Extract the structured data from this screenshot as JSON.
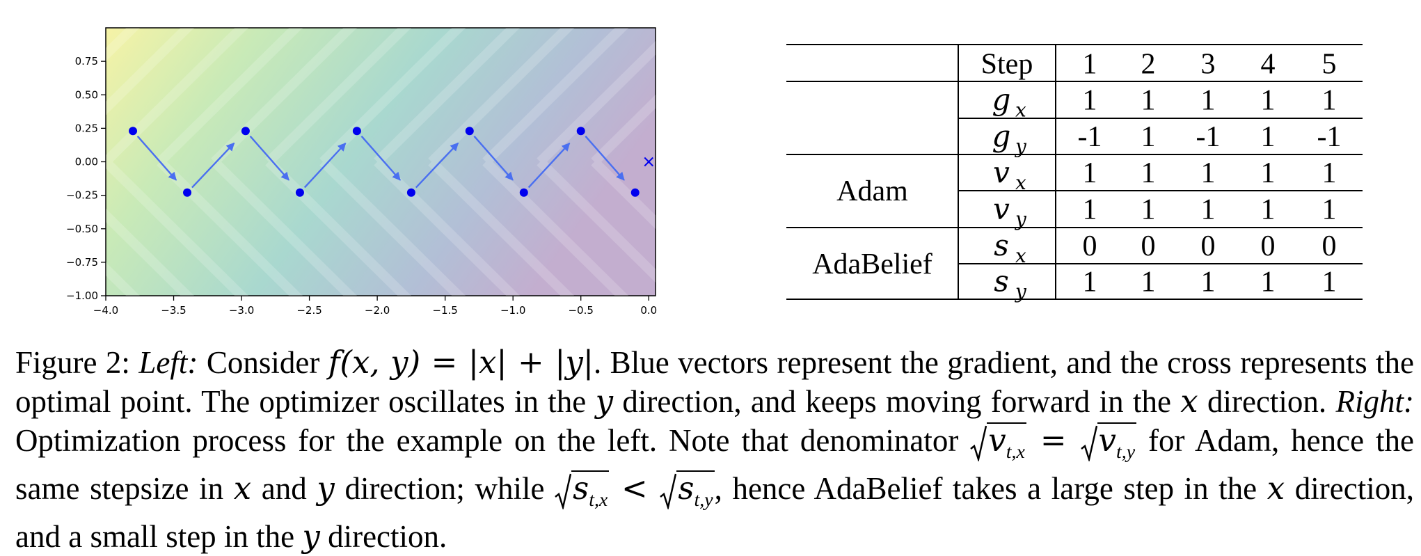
{
  "figure": {
    "chart_data": {
      "type": "scatter",
      "xlim": [
        -4.0,
        0.05
      ],
      "ylim": [
        -1.0,
        1.0
      ],
      "xticks": [
        "−4.0",
        "−3.5",
        "−3.0",
        "−2.5",
        "−2.0",
        "−1.5",
        "−1.0",
        "−0.5",
        "0.0"
      ],
      "xtick_values": [
        -4.0,
        -3.5,
        -3.0,
        -2.5,
        -2.0,
        -1.5,
        -1.0,
        -0.5,
        0.0
      ],
      "yticks": [
        "0.75",
        "0.50",
        "0.25",
        "0.00",
        "−0.25",
        "−0.50",
        "−0.75",
        "−1.00"
      ],
      "ytick_values": [
        0.75,
        0.5,
        0.25,
        0.0,
        -0.25,
        -0.5,
        -0.75,
        -1.0
      ],
      "background": "contour of f(x,y)=|x|+|y|",
      "points": [
        {
          "x": -3.8,
          "y": 0.23
        },
        {
          "x": -3.4,
          "y": -0.23
        },
        {
          "x": -2.97,
          "y": 0.23
        },
        {
          "x": -2.57,
          "y": -0.23
        },
        {
          "x": -2.15,
          "y": 0.23
        },
        {
          "x": -1.75,
          "y": -0.23
        },
        {
          "x": -1.32,
          "y": 0.23
        },
        {
          "x": -0.92,
          "y": -0.23
        },
        {
          "x": -0.5,
          "y": 0.23
        },
        {
          "x": -0.1,
          "y": -0.23
        }
      ],
      "optimum": {
        "x": 0.0,
        "y": 0.0
      },
      "point_color": "#0000ee",
      "arrow_color": "#4a6ff0"
    }
  },
  "table": {
    "header": [
      "Step",
      "1",
      "2",
      "3",
      "4",
      "5"
    ],
    "groups": [
      {
        "label": "",
        "rows": [
          {
            "sym": "g",
            "sub": "x",
            "vals": [
              "1",
              "1",
              "1",
              "1",
              "1"
            ]
          },
          {
            "sym": "g",
            "sub": "y",
            "vals": [
              "-1",
              "1",
              "-1",
              "1",
              "-1"
            ]
          }
        ]
      },
      {
        "label": "Adam",
        "rows": [
          {
            "sym": "v",
            "sub": "x",
            "vals": [
              "1",
              "1",
              "1",
              "1",
              "1"
            ]
          },
          {
            "sym": "v",
            "sub": "y",
            "vals": [
              "1",
              "1",
              "1",
              "1",
              "1"
            ]
          }
        ]
      },
      {
        "label": "AdaBelief",
        "rows": [
          {
            "sym": "s",
            "sub": "x",
            "vals": [
              "0",
              "0",
              "0",
              "0",
              "0"
            ]
          },
          {
            "sym": "s",
            "sub": "y",
            "vals": [
              "1",
              "1",
              "1",
              "1",
              "1"
            ]
          }
        ]
      }
    ]
  },
  "caption": {
    "fig_label": "Figure 2: ",
    "left_label": "Left:",
    "p1": " Consider ",
    "formula": "f(x, y) = |x| + |y|",
    "p2": ". Blue vectors represent the gradient, and the cross represents the optimal point. The optimizer oscillates in the ",
    "y1": "y",
    "p3": " direction, and keeps moving forward in the ",
    "x1": "x",
    "p4": " direction. ",
    "right_label": "Right:",
    "p5": " Optimization process for the example on the left. Note that denominator ",
    "vtx": "v",
    "vtx_sub": "t,x",
    "eq": " = ",
    "vty": "v",
    "vty_sub": "t,y",
    "p6": " for Adam, hence the same stepsize in ",
    "x2": "x",
    "p7": " and ",
    "y2": "y",
    "p8": " direction; while ",
    "stx": "s",
    "stx_sub": "t,x",
    "lt": " < ",
    "sty": "s",
    "sty_sub": "t,y",
    "p9": ", hence AdaBelief takes a large step in the ",
    "x3": "x",
    "p10": " direction, and a small step in the ",
    "y3": "y",
    "p11": " direction."
  }
}
